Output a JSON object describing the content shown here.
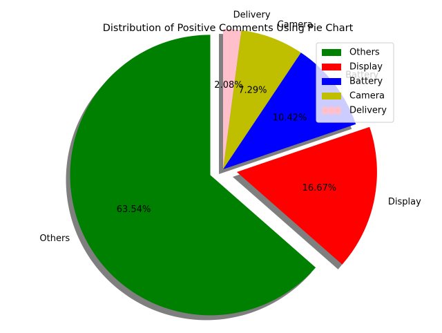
{
  "chart_data": {
    "type": "pie",
    "title": "Distribution of Positive Comments Using Pie Chart",
    "slices": [
      {
        "label": "Others",
        "value": 63.54,
        "pct_label": "63.54%",
        "color": "#008000"
      },
      {
        "label": "Display",
        "value": 16.67,
        "pct_label": "16.67%",
        "color": "#ff0000"
      },
      {
        "label": "Battery",
        "value": 10.42,
        "pct_label": "10.42%",
        "color": "#0000ff"
      },
      {
        "label": "Camera",
        "value": 7.29,
        "pct_label": "7.29%",
        "color": "#bfbf00"
      },
      {
        "label": "Delivery",
        "value": 2.08,
        "pct_label": "2.08%",
        "color": "#ffc0cb"
      }
    ],
    "start_angle_deg": 90,
    "direction": "counterclockwise",
    "exploded": [
      "Others",
      "Display"
    ],
    "shadow": true,
    "legend": {
      "placement": "top-right",
      "entries": [
        "Others",
        "Display",
        "Battery",
        "Camera",
        "Delivery"
      ]
    }
  }
}
